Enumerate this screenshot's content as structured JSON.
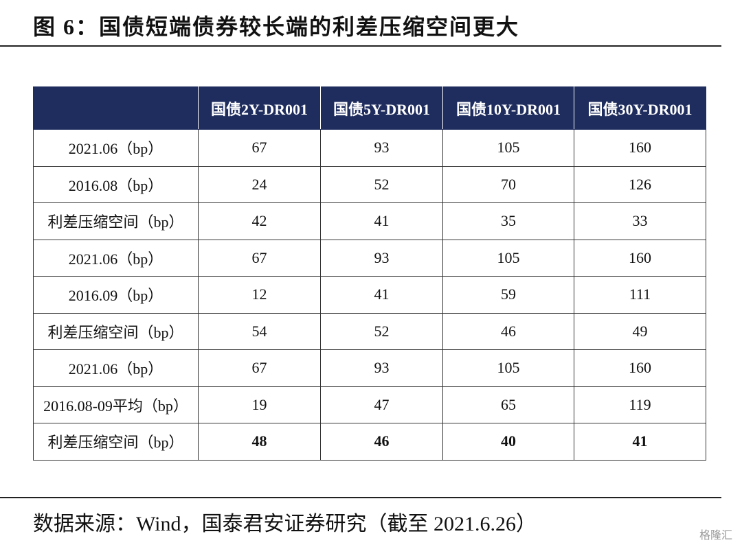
{
  "header": {
    "title": "图 6：国债短端债券较长端的利差压缩空间更大"
  },
  "table": {
    "columns": [
      "",
      "国债2Y-DR001",
      "国债5Y-DR001",
      "国债10Y-DR001",
      "国债30Y-DR001"
    ],
    "rows": [
      [
        "2021.06（bp）",
        67,
        93,
        105,
        160
      ],
      [
        "2016.08（bp）",
        24,
        52,
        70,
        126
      ],
      [
        "利差压缩空间（bp）",
        42,
        41,
        35,
        33
      ],
      [
        "2021.06（bp）",
        67,
        93,
        105,
        160
      ],
      [
        "2016.09（bp）",
        12,
        41,
        59,
        111
      ],
      [
        "利差压缩空间（bp）",
        54,
        52,
        46,
        49
      ],
      [
        "2021.06（bp）",
        67,
        93,
        105,
        160
      ],
      [
        "2016.08-09平均（bp）",
        19,
        47,
        65,
        119
      ],
      [
        "利差压缩空间（bp）",
        48,
        46,
        40,
        41
      ]
    ]
  },
  "footer": {
    "source": "数据来源：Wind，国泰君安证券研究（截至 2021.6.26）",
    "watermark": "格隆汇"
  }
}
